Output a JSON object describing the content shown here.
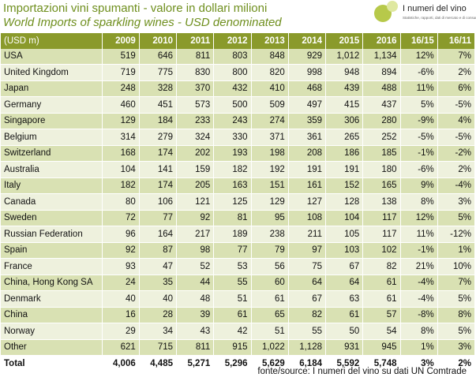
{
  "title": "Importazioni vini spumanti - valore in dollari milioni",
  "subtitle": "World Imports of sparkling wines - USD denominated",
  "logo": {
    "name": "I numeri del vino",
    "tagline": "Statistiche, rapporti, dati di mercato e di consumo"
  },
  "table": {
    "headers": [
      "(USD m)",
      "2009",
      "2010",
      "2011",
      "2012",
      "2013",
      "2014",
      "2015",
      "2016",
      "16/15",
      "16/11"
    ],
    "rows": [
      [
        "USA",
        "519",
        "646",
        "811",
        "803",
        "848",
        "929",
        "1,012",
        "1,134",
        "12%",
        "7%"
      ],
      [
        "United Kingdom",
        "719",
        "775",
        "830",
        "800",
        "820",
        "998",
        "948",
        "894",
        "-6%",
        "2%"
      ],
      [
        "Japan",
        "248",
        "328",
        "370",
        "432",
        "410",
        "468",
        "439",
        "488",
        "11%",
        "6%"
      ],
      [
        "Germany",
        "460",
        "451",
        "573",
        "500",
        "509",
        "497",
        "415",
        "437",
        "5%",
        "-5%"
      ],
      [
        "Singapore",
        "129",
        "184",
        "233",
        "243",
        "274",
        "359",
        "306",
        "280",
        "-9%",
        "4%"
      ],
      [
        "Belgium",
        "314",
        "279",
        "324",
        "330",
        "371",
        "361",
        "265",
        "252",
        "-5%",
        "-5%"
      ],
      [
        "Switzerland",
        "168",
        "174",
        "202",
        "193",
        "198",
        "208",
        "186",
        "185",
        "-1%",
        "-2%"
      ],
      [
        "Australia",
        "104",
        "141",
        "159",
        "182",
        "192",
        "191",
        "191",
        "180",
        "-6%",
        "2%"
      ],
      [
        "Italy",
        "182",
        "174",
        "205",
        "163",
        "151",
        "161",
        "152",
        "165",
        "9%",
        "-4%"
      ],
      [
        "Canada",
        "80",
        "106",
        "121",
        "125",
        "129",
        "127",
        "128",
        "138",
        "8%",
        "3%"
      ],
      [
        "Sweden",
        "72",
        "77",
        "92",
        "81",
        "95",
        "108",
        "104",
        "117",
        "12%",
        "5%"
      ],
      [
        "Russian Federation",
        "96",
        "164",
        "217",
        "189",
        "238",
        "211",
        "105",
        "117",
        "11%",
        "-12%"
      ],
      [
        "Spain",
        "92",
        "87",
        "98",
        "77",
        "79",
        "97",
        "103",
        "102",
        "-1%",
        "1%"
      ],
      [
        "France",
        "93",
        "47",
        "52",
        "53",
        "56",
        "75",
        "67",
        "82",
        "21%",
        "10%"
      ],
      [
        "China, Hong Kong SA",
        "24",
        "35",
        "44",
        "55",
        "60",
        "64",
        "64",
        "61",
        "-4%",
        "7%"
      ],
      [
        "Denmark",
        "40",
        "40",
        "48",
        "51",
        "61",
        "67",
        "63",
        "61",
        "-4%",
        "5%"
      ],
      [
        "China",
        "16",
        "28",
        "39",
        "61",
        "65",
        "82",
        "61",
        "57",
        "-8%",
        "8%"
      ],
      [
        "Norway",
        "29",
        "34",
        "43",
        "42",
        "51",
        "55",
        "50",
        "54",
        "8%",
        "5%"
      ],
      [
        "Other",
        "621",
        "715",
        "811",
        "915",
        "1,022",
        "1,128",
        "931",
        "945",
        "1%",
        "3%"
      ]
    ],
    "total": [
      "Total",
      "4,006",
      "4,485",
      "5,271",
      "5,296",
      "5,629",
      "6,184",
      "5,592",
      "5,748",
      "3%",
      "2%"
    ]
  },
  "source": "fonte/source: I numeri del vino su dati UN Comtrade"
}
